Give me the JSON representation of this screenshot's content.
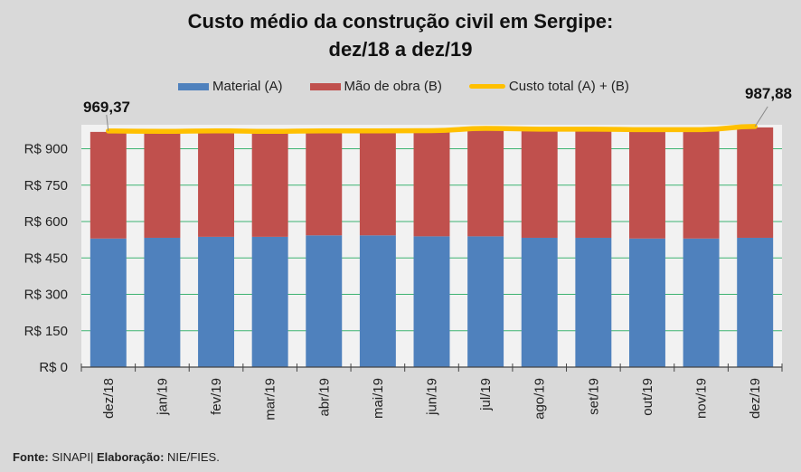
{
  "chart_data": {
    "type": "bar",
    "stacked": true,
    "title": [
      "Custo médio da construção civil em Sergipe:",
      "dez/18 a dez/19"
    ],
    "xlabel": "",
    "ylabel": "",
    "ylim": [
      0,
      1000
    ],
    "yticks": [
      0,
      150,
      300,
      450,
      600,
      750,
      900
    ],
    "ytick_labels": [
      "R$ 0",
      "R$ 150",
      "R$ 300",
      "R$ 450",
      "R$ 600",
      "R$ 750",
      "R$ 900"
    ],
    "grid": true,
    "legend_position": "top",
    "categories": [
      "dez/18",
      "jan/19",
      "fev/19",
      "mar/19",
      "abr/19",
      "mai/19",
      "jun/19",
      "jul/19",
      "ago/19",
      "set/19",
      "out/19",
      "nov/19",
      "dez/19"
    ],
    "series": [
      {
        "name": "Material (A)",
        "kind": "bar",
        "color": "#4f81bd",
        "values": [
          530,
          533,
          537,
          537,
          543,
          543,
          539,
          539,
          533,
          533,
          530,
          530,
          533
        ]
      },
      {
        "name": "Mão de obra (B)",
        "kind": "bar",
        "color": "#c0504d",
        "values": [
          439.37,
          435,
          433,
          431,
          427,
          427,
          432,
          441,
          444,
          444,
          445,
          445,
          454.88
        ]
      },
      {
        "name": "Custo total (A) + (B)",
        "kind": "line",
        "color": "#ffc000",
        "values": [
          969.37,
          968,
          970,
          968,
          970,
          970,
          971,
          980,
          977,
          977,
          975,
          975,
          987.88
        ]
      }
    ],
    "annotations": [
      {
        "category": "dez/18",
        "series": "Custo total (A) + (B)",
        "text": "969,37"
      },
      {
        "category": "dez/19",
        "series": "Custo total (A) + (B)",
        "text": "987,88"
      }
    ]
  },
  "footer": {
    "source_label": "Fonte:",
    "source_value": "SINAPI",
    "separator": "|",
    "elaboration_label": "Elaboração:",
    "elaboration_value": "NIE/FIES."
  },
  "colors": {
    "background": "#d9d9d9",
    "plot_background": "#f2f2f2",
    "gridline": "#3cb371"
  }
}
